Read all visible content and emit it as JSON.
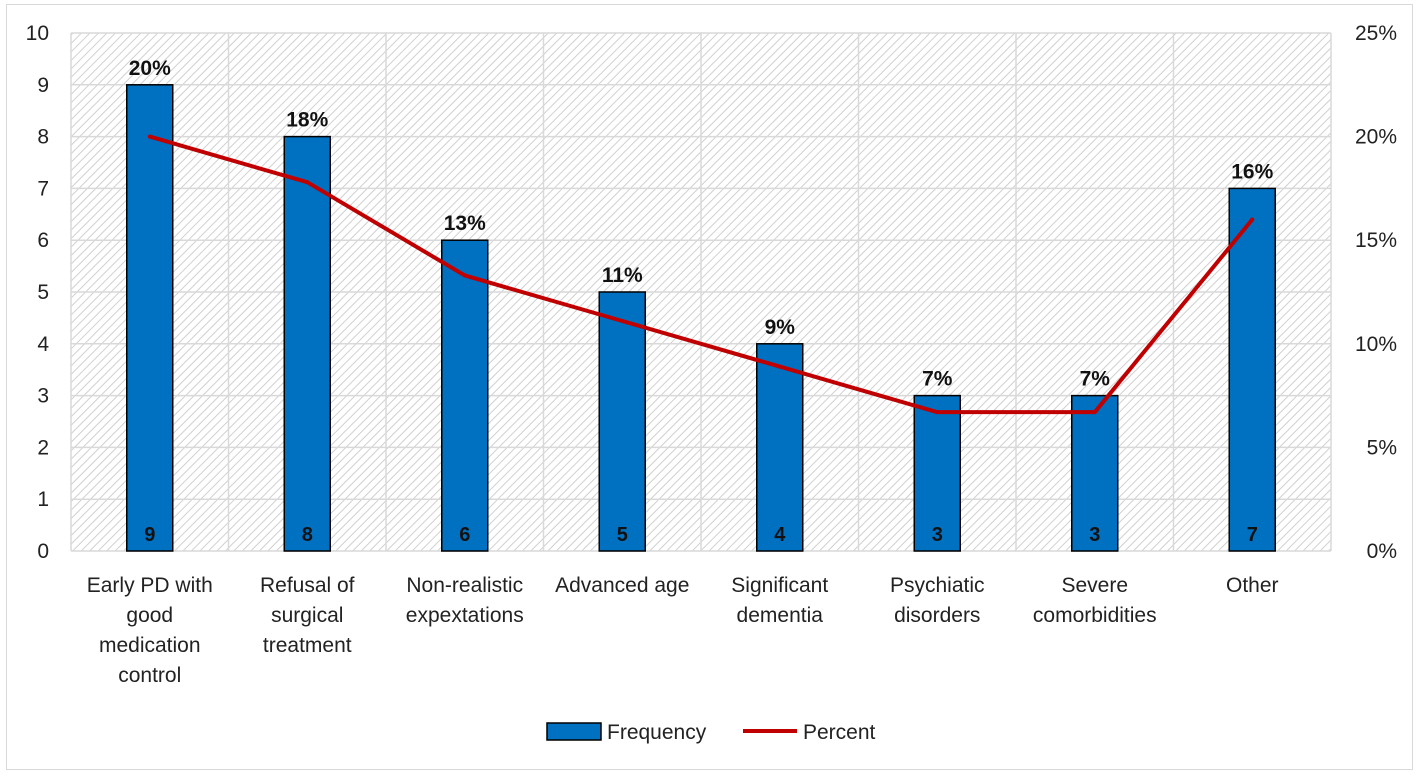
{
  "chart_data": {
    "type": "bar",
    "categories": [
      [
        "Early PD with",
        "good",
        "medication",
        "control"
      ],
      [
        "Refusal of",
        "surgical",
        "treatment"
      ],
      [
        "Non-realistic",
        "expextations"
      ],
      [
        "Advanced age"
      ],
      [
        "Significant",
        "dementia"
      ],
      [
        "Psychiatic",
        "disorders"
      ],
      [
        "Severe",
        "comorbidities"
      ],
      [
        "Other"
      ]
    ],
    "series": [
      {
        "name": "Frequency",
        "type": "bar",
        "axis": "left",
        "values": [
          9,
          8,
          6,
          5,
          4,
          3,
          3,
          7
        ],
        "value_labels": [
          "9",
          "8",
          "6",
          "5",
          "4",
          "3",
          "3",
          "7"
        ],
        "color": "#0070c0"
      },
      {
        "name": "Percent",
        "type": "line",
        "axis": "right",
        "values": [
          20,
          17.8,
          13.3,
          11.1,
          8.9,
          6.7,
          6.7,
          16
        ],
        "value_labels": [
          "20%",
          "18%",
          "13%",
          "11%",
          "9%",
          "7%",
          "7%",
          "16%"
        ],
        "color": "#c00000"
      }
    ],
    "y_left": {
      "min": 0,
      "max": 10,
      "step": 1,
      "tick_labels": [
        "0",
        "1",
        "2",
        "3",
        "4",
        "5",
        "6",
        "7",
        "8",
        "9",
        "10"
      ]
    },
    "y_right": {
      "min": 0,
      "max": 25,
      "step": 5,
      "tick_labels": [
        "0%",
        "5%",
        "10%",
        "15%",
        "20%",
        "25%"
      ]
    },
    "grid": true,
    "legend_position": "bottom"
  }
}
